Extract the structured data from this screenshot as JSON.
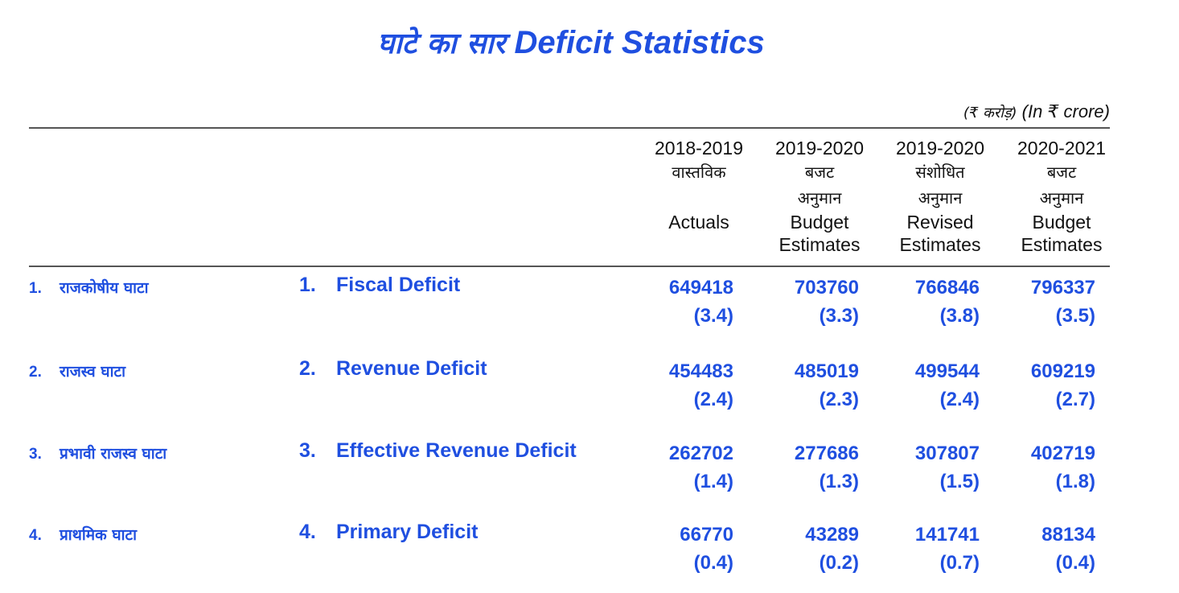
{
  "title": {
    "hindi": "घाटे का सार",
    "english": "Deficit Statistics"
  },
  "unit": {
    "hindi": "(₹ करोड़)",
    "english": "(In ₹ crore)"
  },
  "columns": [
    {
      "year": "2018-2019",
      "hindi": "वास्तविक",
      "hindi2": "",
      "english": "Actuals",
      "english2": ""
    },
    {
      "year": "2019-2020",
      "hindi": "बजट",
      "hindi2": "अनुमान",
      "english": "Budget",
      "english2": "Estimates"
    },
    {
      "year": "2019-2020",
      "hindi": "संशोधित",
      "hindi2": "अनुमान",
      "english": "Revised",
      "english2": "Estimates"
    },
    {
      "year": "2020-2021",
      "hindi": "बजट",
      "hindi2": "अनुमान",
      "english": "Budget",
      "english2": "Estimates"
    }
  ],
  "rows": [
    {
      "num": "1.",
      "hindi": "राजकोषीय घाटा",
      "english": "Fiscal Deficit",
      "cells": [
        {
          "value": "649418",
          "pct": "(3.4)"
        },
        {
          "value": "703760",
          "pct": "(3.3)"
        },
        {
          "value": "766846",
          "pct": "(3.8)"
        },
        {
          "value": "796337",
          "pct": "(3.5)"
        }
      ]
    },
    {
      "num": "2.",
      "hindi": "राजस्व घाटा",
      "english": "Revenue Deficit",
      "cells": [
        {
          "value": "454483",
          "pct": "(2.4)"
        },
        {
          "value": "485019",
          "pct": "(2.3)"
        },
        {
          "value": "499544",
          "pct": "(2.4)"
        },
        {
          "value": "609219",
          "pct": "(2.7)"
        }
      ]
    },
    {
      "num": "3.",
      "hindi": "प्रभावी राजस्व घाटा",
      "english": "Effective Revenue Deficit",
      "cells": [
        {
          "value": "262702",
          "pct": "(1.4)"
        },
        {
          "value": "277686",
          "pct": "(1.3)"
        },
        {
          "value": "307807",
          "pct": "(1.5)"
        },
        {
          "value": "402719",
          "pct": "(1.8)"
        }
      ]
    },
    {
      "num": "4.",
      "hindi": "प्राथमिक घाटा",
      "english": "Primary Deficit",
      "cells": [
        {
          "value": "66770",
          "pct": "(0.4)"
        },
        {
          "value": "43289",
          "pct": "(0.2)"
        },
        {
          "value": "141741",
          "pct": "(0.7)"
        },
        {
          "value": "88134",
          "pct": "(0.4)"
        }
      ]
    }
  ],
  "colors": {
    "accent": "#1f4fe0",
    "text": "#111111",
    "rule": "#555555"
  }
}
